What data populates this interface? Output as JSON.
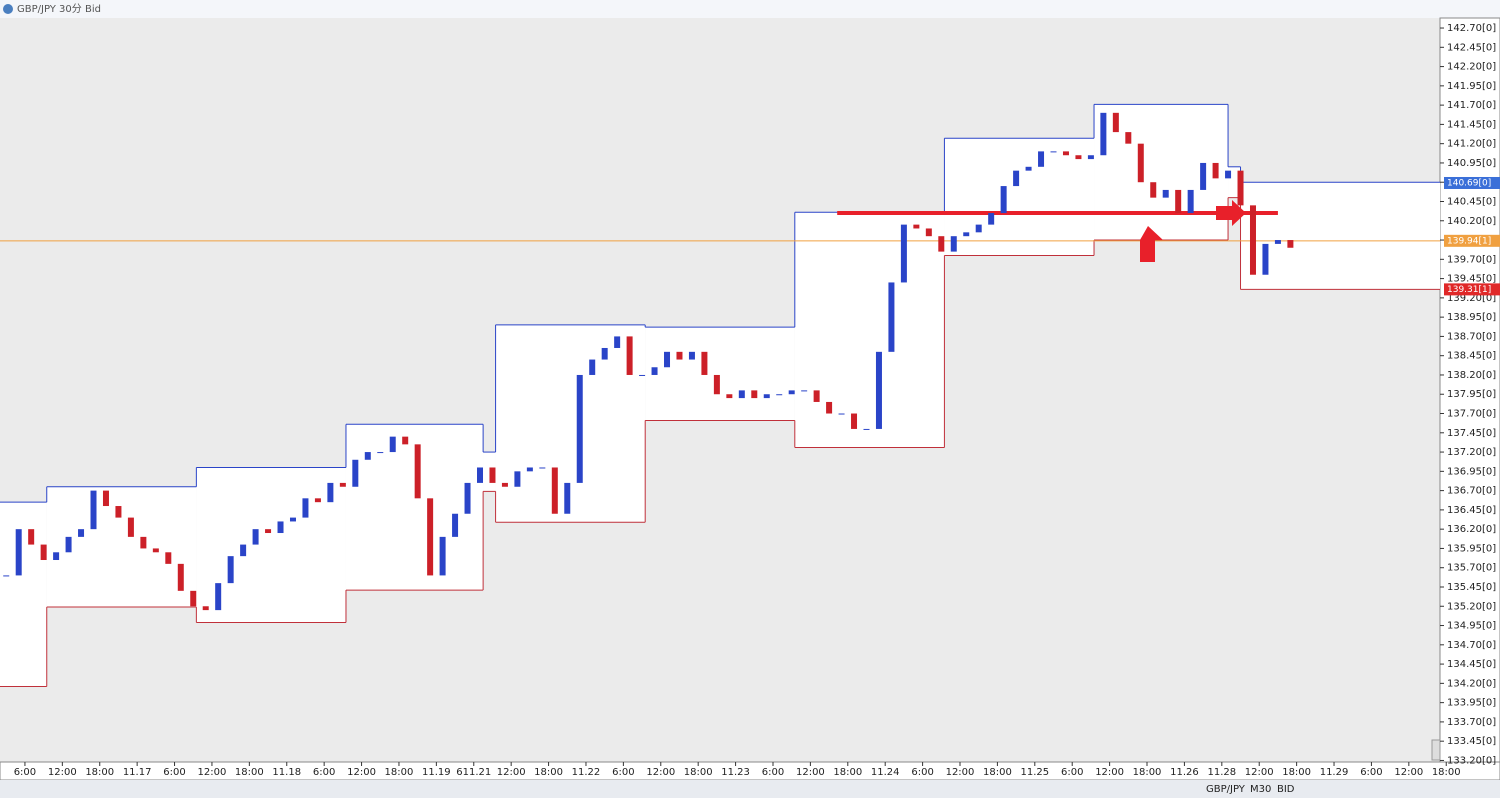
{
  "window": {
    "title": "GBP/JPY 30分 Bid"
  },
  "toolbar": {
    "items": [
      "GBP/JPY",
      "M30",
      "BID"
    ]
  },
  "chart_data": {
    "type": "candlestick",
    "x": [
      -21,
      -19,
      -17,
      -15,
      -13,
      -11,
      -9,
      -7,
      -5,
      -3,
      -1,
      1,
      3,
      5,
      7,
      9,
      11,
      13,
      15,
      17,
      19,
      21,
      23,
      25,
      27,
      29,
      31,
      33,
      35,
      37,
      39,
      41,
      43,
      45,
      47,
      49,
      51,
      53,
      55,
      57,
      59,
      61,
      63,
      65,
      67,
      69,
      71,
      73,
      75,
      77,
      79,
      81,
      83,
      85,
      87,
      89,
      91,
      93,
      95,
      97,
      99,
      101,
      103,
      105,
      107,
      109,
      111,
      113,
      115,
      117,
      119,
      121,
      123,
      125,
      127,
      129,
      131,
      133,
      135,
      137,
      139,
      141,
      143,
      145,
      147,
      149,
      151,
      153,
      155,
      157,
      159,
      161,
      163,
      165,
      167,
      169,
      171,
      173,
      175,
      177,
      179,
      181,
      183,
      185
    ],
    "close": [
      135.6,
      136.2,
      136.0,
      135.8,
      135.9,
      136.1,
      136.2,
      136.7,
      136.5,
      136.35,
      136.1,
      135.95,
      135.9,
      135.75,
      135.4,
      135.2,
      135.15,
      135.5,
      135.85,
      136.0,
      136.2,
      136.15,
      136.3,
      136.35,
      136.6,
      136.55,
      136.8,
      136.75,
      137.1,
      137.2,
      137.2,
      137.4,
      137.3,
      136.6,
      135.6,
      136.1,
      136.4,
      136.8,
      137.0,
      136.8,
      136.75,
      136.95,
      137.0,
      137.0,
      136.4,
      136.8,
      138.2,
      138.4,
      138.55,
      138.7,
      138.2,
      138.2,
      138.3,
      138.5,
      138.4,
      138.5,
      138.2,
      137.95,
      137.9,
      138.0,
      137.9,
      137.95,
      137.95,
      138.0,
      138.0,
      137.85,
      137.7,
      137.7,
      137.5,
      137.5,
      138.5,
      139.4,
      140.15,
      140.1,
      140.0,
      139.8,
      140.0,
      140.05,
      140.15,
      140.3,
      140.65,
      140.85,
      140.9,
      141.1,
      141.1,
      141.05,
      141.0,
      141.05,
      141.6,
      141.35,
      141.2,
      140.7,
      140.5,
      140.6,
      140.3,
      140.6,
      140.95,
      140.75,
      140.85,
      140.4,
      139.5,
      139.9,
      139.95,
      139.85
    ],
    "up_color": "#2a44c8",
    "down_color": "#cc2028",
    "xlim": [
      -22,
      209
    ],
    "xticks": [
      {
        "value": -18,
        "label": "6:00"
      },
      {
        "value": -12,
        "label": "12:00"
      },
      {
        "value": -6,
        "label": "18:00"
      },
      {
        "value": 0,
        "label": "11.17"
      },
      {
        "value": 6,
        "label": "6:00"
      },
      {
        "value": 12,
        "label": "12:00"
      },
      {
        "value": 18,
        "label": "18:00"
      },
      {
        "value": 24,
        "label": "11.18"
      },
      {
        "value": 30,
        "label": "6:00"
      },
      {
        "value": 36,
        "label": "12:00"
      },
      {
        "value": 42,
        "label": "18:00"
      },
      {
        "value": 48,
        "label": "11.19"
      },
      {
        "value": 54,
        "label": "611.21"
      },
      {
        "value": 60,
        "label": "12:00"
      },
      {
        "value": 66,
        "label": "18:00"
      },
      {
        "value": 72,
        "label": "11.22"
      },
      {
        "value": 78,
        "label": "6:00"
      },
      {
        "value": 84,
        "label": "12:00"
      },
      {
        "value": 90,
        "label": "18:00"
      },
      {
        "value": 96,
        "label": "11.23"
      },
      {
        "value": 102,
        "label": "6:00"
      },
      {
        "value": 108,
        "label": "12:00"
      },
      {
        "value": 114,
        "label": "18:00"
      },
      {
        "value": 120,
        "label": "11.24"
      },
      {
        "value": 126,
        "label": "6:00"
      },
      {
        "value": 132,
        "label": "12:00"
      },
      {
        "value": 138,
        "label": "18:00"
      },
      {
        "value": 144,
        "label": "11.25"
      },
      {
        "value": 150,
        "label": "6:00"
      },
      {
        "value": 156,
        "label": "12:00"
      },
      {
        "value": 162,
        "label": "18:00"
      },
      {
        "value": 168,
        "label": "11.26"
      },
      {
        "value": 174,
        "label": "11.28"
      },
      {
        "value": 180,
        "label": "12:00"
      },
      {
        "value": 186,
        "label": "18:00"
      },
      {
        "value": 192,
        "label": "11.29"
      },
      {
        "value": 198,
        "label": "6:00"
      },
      {
        "value": 204,
        "label": "12:00"
      },
      {
        "value": 210,
        "label": "18:00"
      }
    ],
    "ylim": [
      133.18,
      142.83
    ],
    "yticks": [
      {
        "value": 142.7,
        "label": "142.70[0]"
      },
      {
        "value": 142.45,
        "label": "142.45[0]"
      },
      {
        "value": 142.2,
        "label": "142.20[0]"
      },
      {
        "value": 141.95,
        "label": "141.95[0]"
      },
      {
        "value": 141.7,
        "label": "141.70[0]"
      },
      {
        "value": 141.45,
        "label": "141.45[0]"
      },
      {
        "value": 141.2,
        "label": "141.20[0]"
      },
      {
        "value": 140.95,
        "label": "140.95[0]"
      },
      {
        "value": 140.7,
        "label": "140.70[0]"
      },
      {
        "value": 140.45,
        "label": "140.45[0]"
      },
      {
        "value": 140.2,
        "label": "140.20[0]"
      },
      {
        "value": 139.95,
        "label": "139.95[0]"
      },
      {
        "value": 139.7,
        "label": "139.70[0]"
      },
      {
        "value": 139.45,
        "label": "139.45[0]"
      },
      {
        "value": 139.2,
        "label": "139.20[0]"
      },
      {
        "value": 138.95,
        "label": "138.95[0]"
      },
      {
        "value": 138.7,
        "label": "138.70[0]"
      },
      {
        "value": 138.45,
        "label": "138.45[0]"
      },
      {
        "value": 138.2,
        "label": "138.20[0]"
      },
      {
        "value": 137.95,
        "label": "137.95[0]"
      },
      {
        "value": 137.7,
        "label": "137.70[0]"
      },
      {
        "value": 137.45,
        "label": "137.45[0]"
      },
      {
        "value": 137.2,
        "label": "137.20[0]"
      },
      {
        "value": 136.95,
        "label": "136.95[0]"
      },
      {
        "value": 136.7,
        "label": "136.70[0]"
      },
      {
        "value": 136.45,
        "label": "136.45[0]"
      },
      {
        "value": 136.2,
        "label": "136.20[0]"
      },
      {
        "value": 135.95,
        "label": "135.95[0]"
      },
      {
        "value": 135.7,
        "label": "135.70[0]"
      },
      {
        "value": 135.45,
        "label": "135.45[0]"
      },
      {
        "value": 135.2,
        "label": "135.20[0]"
      },
      {
        "value": 134.95,
        "label": "134.95[0]"
      },
      {
        "value": 134.7,
        "label": "134.70[0]"
      },
      {
        "value": 134.45,
        "label": "134.45[0]"
      },
      {
        "value": 134.2,
        "label": "134.20[0]"
      },
      {
        "value": 133.95,
        "label": "133.95[0]"
      },
      {
        "value": 133.7,
        "label": "133.70[0]"
      },
      {
        "value": 133.45,
        "label": "133.45[0]"
      },
      {
        "value": 133.2,
        "label": "133.20[0]"
      }
    ],
    "ranges": [
      {
        "x0": -22,
        "x1": -14.5,
        "high": 136.55,
        "low": 134.16
      },
      {
        "x0": -14.5,
        "x1": 9.5,
        "high": 136.75,
        "low": 135.19
      },
      {
        "x0": 9.5,
        "x1": 33.5,
        "high": 137.0,
        "low": 134.99
      },
      {
        "x0": 33.5,
        "x1": 55.5,
        "high": 137.56,
        "low": 135.41
      },
      {
        "x0": 55.5,
        "x1": 57.5,
        "high": 137.2,
        "low": 136.69
      },
      {
        "x0": 57.5,
        "x1": 81.5,
        "high": 138.85,
        "low": 136.29
      },
      {
        "x0": 81.5,
        "x1": 105.5,
        "high": 138.82,
        "low": 137.61
      },
      {
        "x0": 105.5,
        "x1": 129.5,
        "high": 140.31,
        "low": 137.26
      },
      {
        "x0": 129.5,
        "x1": 153.5,
        "high": 141.27,
        "low": 139.75
      },
      {
        "x0": 153.5,
        "x1": 175,
        "high": 141.71,
        "low": 139.95
      },
      {
        "x0": 175,
        "x1": 177,
        "high": 140.9,
        "low": 140.5
      },
      {
        "x0": 177,
        "x1": 209,
        "high": 140.7,
        "low": 139.31
      }
    ],
    "range_high_color": "#2a44c8",
    "range_low_color": "#c0303a",
    "lines": [
      {
        "value": 139.94,
        "color": "#f0a040",
        "width": 1
      },
      {
        "value": 140.3,
        "x0": 112.3,
        "x1": 183,
        "color": "#e8202a",
        "width": 4
      }
    ],
    "price_tags": [
      {
        "value": 140.69,
        "label": "140.69[0]",
        "color": "#3a6fd8"
      },
      {
        "value": 139.94,
        "label": "139.94[1]",
        "color": "#f0a040"
      },
      {
        "value": 139.31,
        "label": "139.31[1]",
        "color": "#e02828"
      }
    ]
  }
}
